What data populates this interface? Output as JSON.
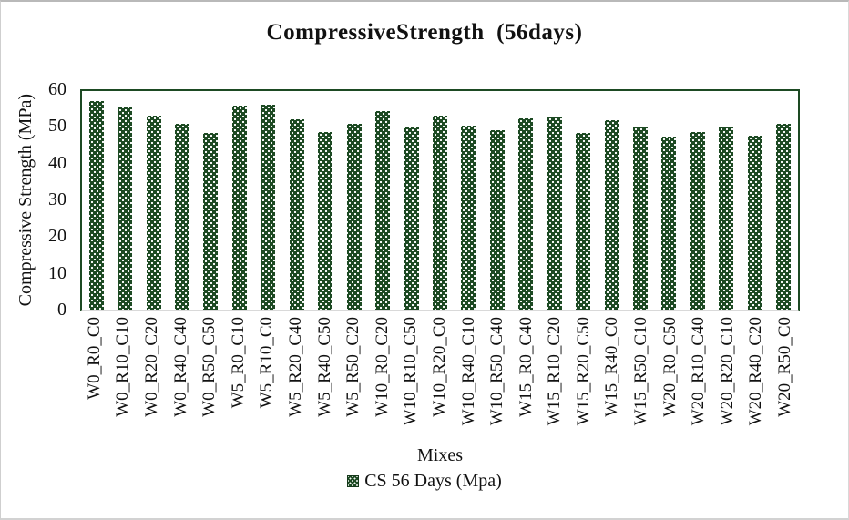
{
  "chart_data": {
    "type": "bar",
    "title": "CompressiveStrength  (56days)",
    "xlabel": "Mixes",
    "ylabel": "Compressive Strength (MPa)",
    "ylim": [
      0,
      60
    ],
    "yticks": [
      0,
      10,
      20,
      30,
      40,
      50,
      60
    ],
    "grid": false,
    "legend_position": "bottom",
    "categories": [
      "W0_R0_C0",
      "W0_R10_C10",
      "W0_R20_C20",
      "W0_R40_C40",
      "W0_R50_C50",
      "W5_R0_C10",
      "W5_R10_C0",
      "W5_R20_C40",
      "W5_R40_C50",
      "W5_R50_C20",
      "W10_R0_C20",
      "W10_R10_C50",
      "W10_R20_C0",
      "W10_R40_C10",
      "W10_R50_C40",
      "W15_R0_C40",
      "W15_R10_C20",
      "W15_R20_C50",
      "W15_R40_C0",
      "W15_R50_C10",
      "W20_R0_C50",
      "W20_R10_C40",
      "W20_R20_C10",
      "W20_R40_C20",
      "W20_R50_C0"
    ],
    "series": [
      {
        "name": "CS 56 Days (Mpa)",
        "values": [
          57.2,
          55.5,
          53.3,
          51.0,
          48.5,
          56.0,
          56.2,
          52.3,
          48.7,
          50.9,
          54.6,
          50.1,
          53.2,
          50.6,
          49.3,
          52.5,
          53.0,
          48.5,
          52.0,
          50.3,
          47.4,
          48.8,
          50.2,
          47.8,
          50.9
        ]
      }
    ],
    "colors": {
      "bar_fill": "#1d4a23",
      "bar_pattern_dots": "#ffffff",
      "plot_border": "#1d4a23",
      "x_axis_line": "#d9d9d9",
      "text": "#111111"
    }
  },
  "legend": {
    "label": "CS 56 Days (Mpa)"
  }
}
